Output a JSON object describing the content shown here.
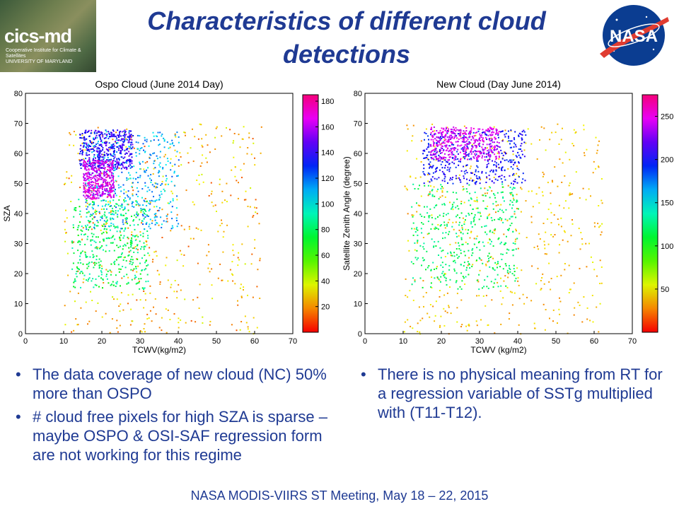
{
  "header": {
    "title_line1": "Characteristics of different cloud",
    "title_line2": "detections",
    "logo_left_text": "cics-md",
    "logo_left_subtext_1": "Cooperative Institute for Climate & Satellites",
    "logo_left_subtext_2": "UNIVERSITY OF MARYLAND",
    "logo_right_text": "NASA",
    "title_color": "#1f3a93"
  },
  "chart_data": [
    {
      "type": "scatter",
      "title": "Ospo Cloud (June 2014 Day)",
      "xlabel": "TCWV(kg/m2)",
      "ylabel": "SZA",
      "xlim": [
        0,
        70
      ],
      "ylim": [
        0,
        80
      ],
      "xticks": [
        0,
        10,
        20,
        30,
        40,
        50,
        60,
        70
      ],
      "yticks": [
        0,
        10,
        20,
        30,
        40,
        50,
        60,
        70,
        80
      ],
      "colorbar": {
        "colormap": "hsv",
        "range": [
          0,
          185
        ],
        "ticks": [
          20,
          40,
          60,
          80,
          100,
          120,
          140,
          160,
          180
        ]
      },
      "grid": false,
      "description_regions": [
        {
          "x": [
            10,
            62
          ],
          "y": [
            0,
            70
          ],
          "value": 25
        },
        {
          "x": [
            12,
            32
          ],
          "y": [
            15,
            45
          ],
          "value": 80
        },
        {
          "x": [
            15,
            40
          ],
          "y": [
            35,
            68
          ],
          "value": 110
        },
        {
          "x": [
            14,
            28
          ],
          "y": [
            55,
            68
          ],
          "value": 140
        },
        {
          "x": [
            15,
            23
          ],
          "y": [
            45,
            58
          ],
          "value": 165
        }
      ]
    },
    {
      "type": "scatter",
      "title": "New Cloud (Day June 2014)",
      "xlabel": "TCWV (kg/m2)",
      "ylabel": "Satellite Zenith Angle (degree)",
      "xlim": [
        0,
        70
      ],
      "ylim": [
        0,
        80
      ],
      "xticks": [
        0,
        10,
        20,
        30,
        40,
        50,
        60,
        70
      ],
      "yticks": [
        0,
        10,
        20,
        30,
        40,
        50,
        60,
        70,
        80
      ],
      "colorbar": {
        "colormap": "hsv",
        "range": [
          0,
          275
        ],
        "ticks": [
          50,
          100,
          150,
          200,
          250
        ]
      },
      "grid": false,
      "description_regions": [
        {
          "x": [
            10,
            62
          ],
          "y": [
            0,
            70
          ],
          "value": 40
        },
        {
          "x": [
            12,
            40
          ],
          "y": [
            15,
            50
          ],
          "value": 120
        },
        {
          "x": [
            15,
            42
          ],
          "y": [
            50,
            68
          ],
          "value": 200
        },
        {
          "x": [
            17,
            35
          ],
          "y": [
            58,
            69
          ],
          "value": 245
        }
      ]
    }
  ],
  "bullets_left": [
    "The data coverage of new cloud (NC) 50% more than OSPO",
    "# cloud free pixels for high SZA is sparse – maybe OSPO & OSI-SAF regression form are not working for this regime"
  ],
  "bullets_right": [
    "There is no physical meaning from RT for a regression variable of SSTg multiplied with (T11-T12)."
  ],
  "footer": "NASA MODIS-VIIRS ST Meeting, May 18 – 22, 2015"
}
